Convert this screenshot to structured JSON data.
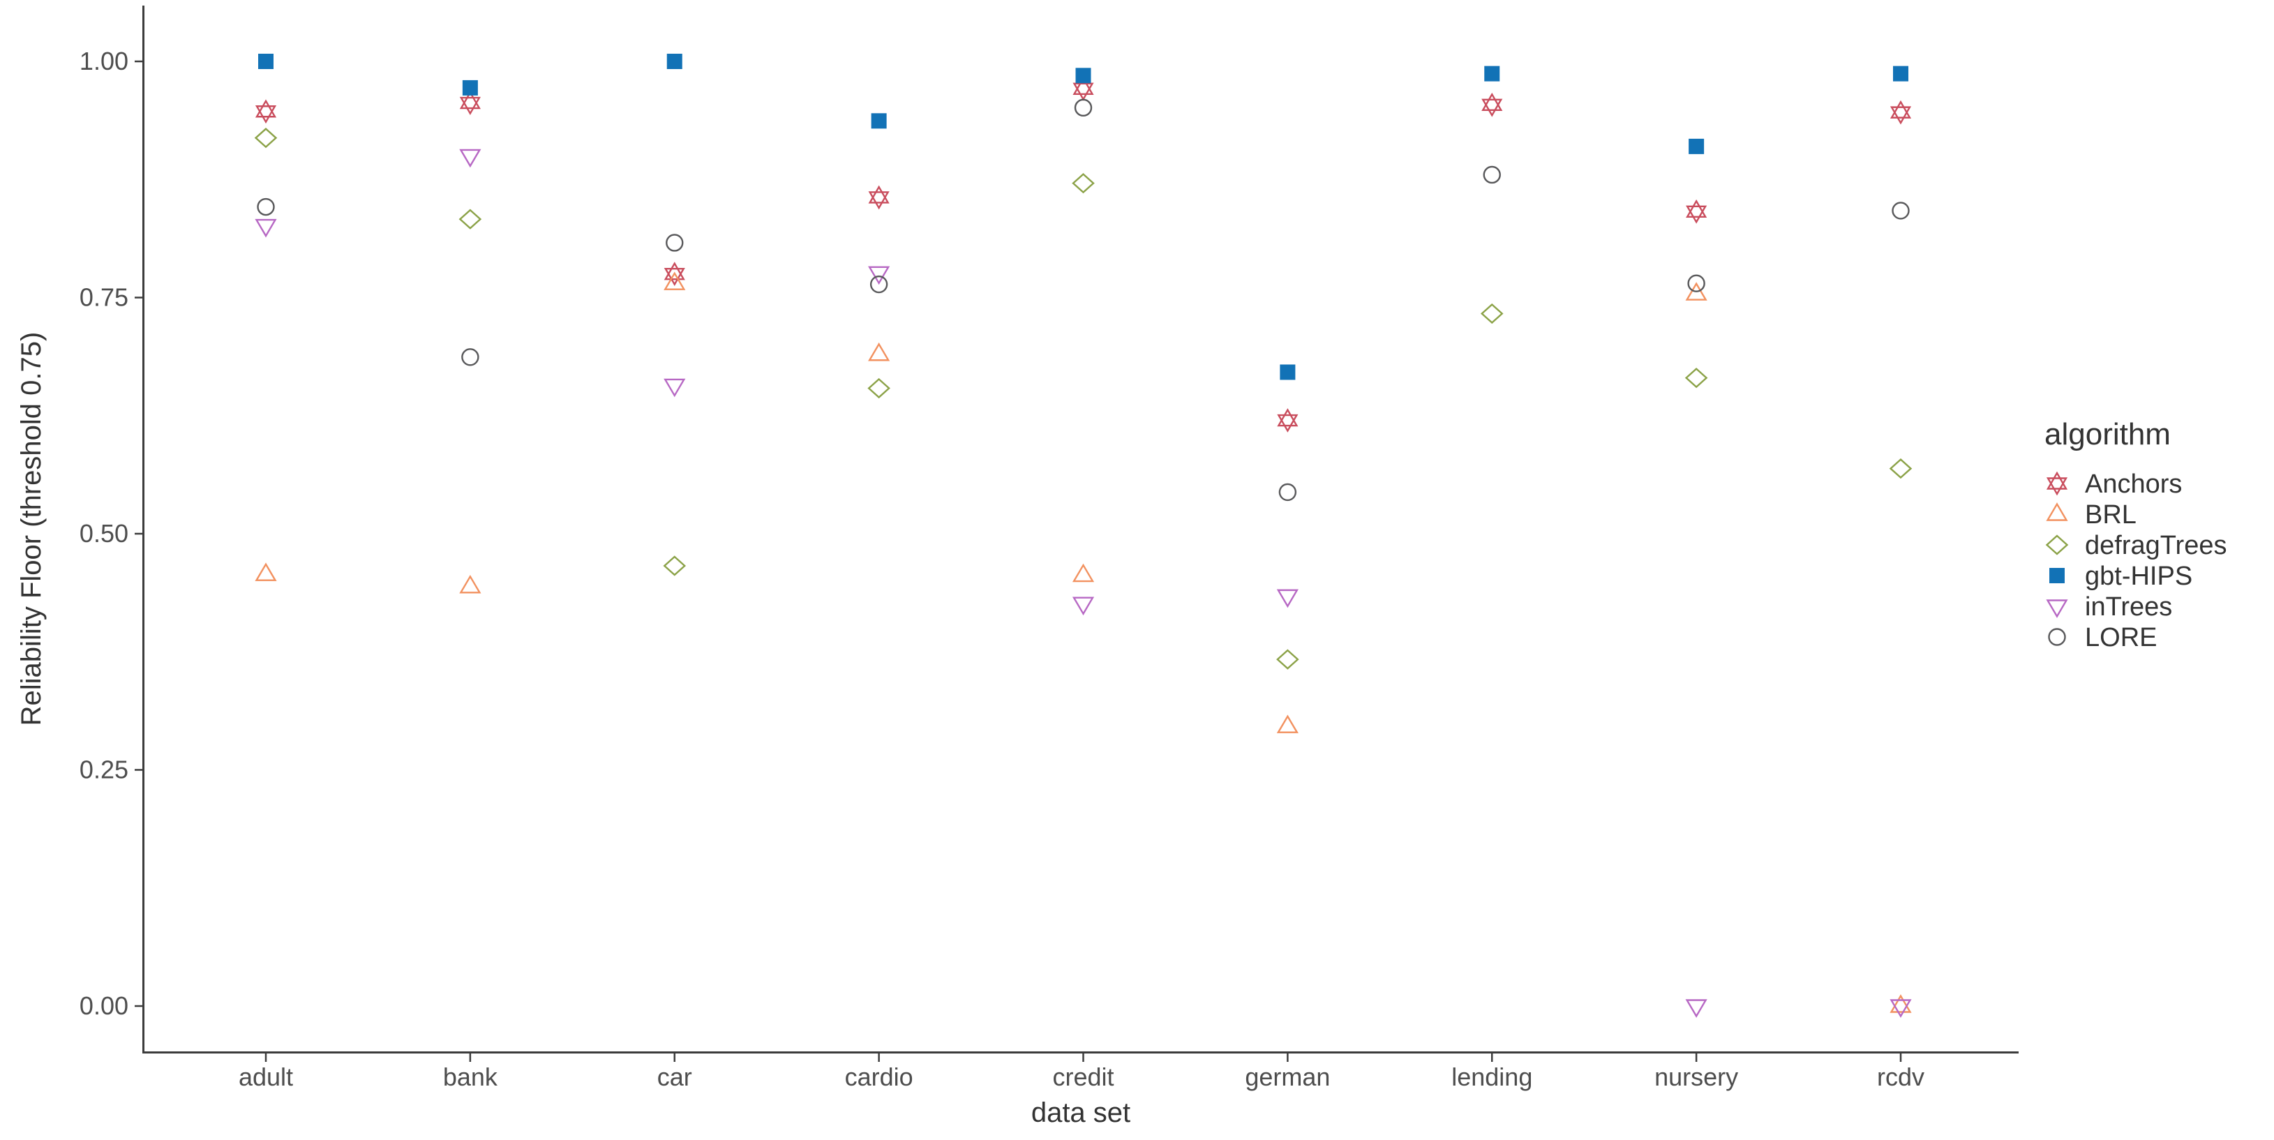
{
  "figure": {
    "y_axis_title": "Reliability Floor (threshold 0.75)",
    "x_axis_title": "data set",
    "legend_title": "algorithm",
    "y_tick_labels": [
      "0.00",
      "0.25",
      "0.50",
      "0.75",
      "1.00"
    ],
    "background_color": "#ffffff",
    "axis_line_color": "#3c3c3c",
    "tick_label_color": "#4d4d4d"
  },
  "chart_data": {
    "type": "scatter",
    "title": "",
    "xlabel": "data set",
    "ylabel": "Reliability Floor (threshold 0.75)",
    "categories": [
      "adult",
      "bank",
      "car",
      "cardio",
      "credit",
      "german",
      "lending",
      "nursery",
      "rcdv"
    ],
    "ylim": [
      0,
      1.03
    ],
    "y_ticks": [
      0,
      0.25,
      0.5,
      0.75,
      1.0
    ],
    "grid": false,
    "legend_position": "right",
    "legend_title": "algorithm",
    "series": [
      {
        "name": "Anchors",
        "marker": "star6",
        "color": "#C94D5D",
        "values": [
          0.947,
          0.956,
          0.775,
          0.856,
          0.971,
          0.62,
          0.954,
          0.841,
          0.946
        ]
      },
      {
        "name": "BRL",
        "marker": "triangle-up",
        "color": "#F2915F",
        "values": [
          0.457,
          0.444,
          0.765,
          0.69,
          0.456,
          0.296,
          null,
          0.754,
          0.0
        ]
      },
      {
        "name": "defragTrees",
        "marker": "diamond",
        "color": "#8BA247",
        "values": [
          0.919,
          0.833,
          0.466,
          0.654,
          0.871,
          0.367,
          0.733,
          0.665,
          0.569
        ]
      },
      {
        "name": "gbt-HIPS",
        "marker": "square-filled",
        "color": "#1272B6",
        "values": [
          1.0,
          0.972,
          1.0,
          0.937,
          0.985,
          0.671,
          0.987,
          0.91,
          0.987
        ]
      },
      {
        "name": "inTrees",
        "marker": "triangle-down",
        "color": "#B768C4",
        "values": [
          0.826,
          0.9,
          0.657,
          0.776,
          0.426,
          0.434,
          null,
          0.0,
          0.0
        ]
      },
      {
        "name": "LORE",
        "marker": "circle",
        "color": "#58585A",
        "values": [
          0.846,
          0.687,
          0.808,
          0.764,
          0.951,
          0.544,
          0.88,
          0.765,
          0.842
        ]
      }
    ]
  }
}
